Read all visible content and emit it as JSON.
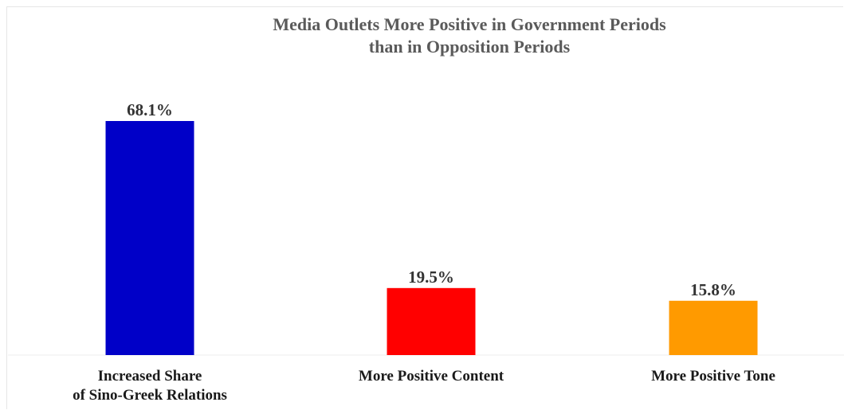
{
  "chart_data": {
    "type": "bar",
    "title": "Media Outlets More Positive in Government Periods than in Opposition Periods",
    "title_lines": [
      "Media Outlets More Positive in Government Periods",
      "than in Opposition Periods"
    ],
    "categories": [
      [
        "Increased Share",
        "of Sino-Greek Relations"
      ],
      [
        "More Positive Content"
      ],
      [
        "More Positive Tone"
      ]
    ],
    "values": [
      68.1,
      19.5,
      15.8
    ],
    "value_labels": [
      "68.1%",
      "19.5%",
      "15.8%"
    ],
    "unit": "%",
    "colors": [
      "#0000c8",
      "#ff0000",
      "#ff9a00"
    ],
    "ylim": [
      0,
      68.1
    ],
    "grid": false,
    "legend": "none"
  }
}
